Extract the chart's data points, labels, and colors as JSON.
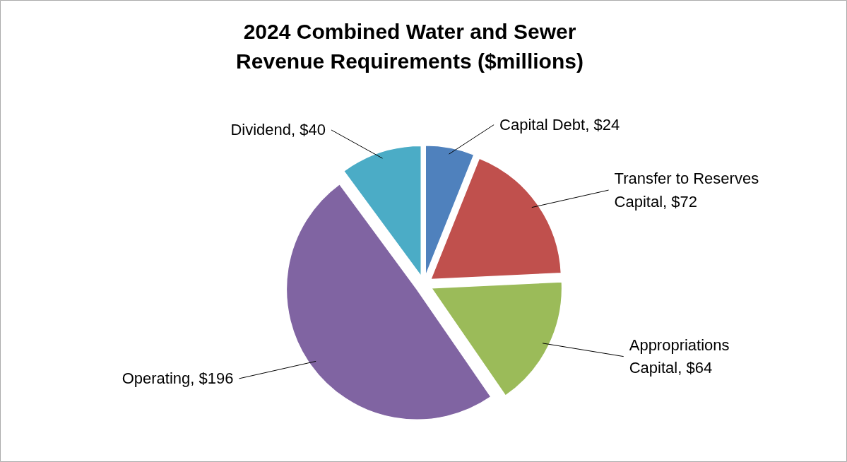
{
  "chart_data": {
    "type": "pie",
    "title": "2024 Combined Water and Sewer Revenue Requirements ($millions)",
    "categories": [
      "Capital Debt",
      "Transfer to Reserves Capital",
      "Appropriations Capital",
      "Operating",
      "Dividend"
    ],
    "values": [
      24,
      72,
      64,
      196,
      40
    ],
    "value_labels": [
      "$24",
      "$72",
      "$64",
      "$196",
      "$40"
    ],
    "colors": [
      "#4f81bd",
      "#c0504d",
      "#9bbb59",
      "#8064a2",
      "#4bacc6"
    ]
  }
}
